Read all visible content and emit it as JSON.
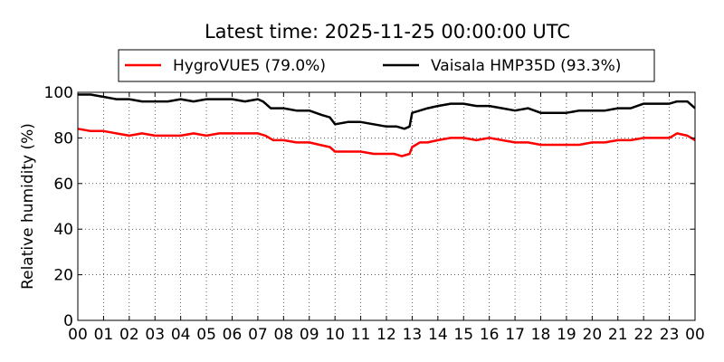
{
  "chart_data": {
    "type": "line",
    "title": "Latest time: 2025-11-25 00:00:00 UTC",
    "xlabel": "",
    "ylabel": "Relative humidity (%)",
    "ylim": [
      0,
      100
    ],
    "xlim": [
      0,
      24
    ],
    "yticks": [
      0,
      20,
      40,
      60,
      80,
      100
    ],
    "xtick_labels": [
      "00",
      "01",
      "02",
      "03",
      "04",
      "05",
      "06",
      "07",
      "08",
      "09",
      "10",
      "11",
      "12",
      "13",
      "14",
      "15",
      "16",
      "17",
      "18",
      "19",
      "20",
      "21",
      "22",
      "23",
      "00"
    ],
    "grid": true,
    "legend_position": "top",
    "series": [
      {
        "name": "HygroVUE5 (79.0%)",
        "color": "#ff0000",
        "x": [
          0,
          0.5,
          1,
          1.5,
          2,
          2.5,
          3,
          3.5,
          4,
          4.5,
          5,
          5.5,
          6,
          6.5,
          7,
          7.3,
          7.6,
          8,
          8.5,
          9,
          9.4,
          9.8,
          10,
          10.5,
          11,
          11.5,
          12,
          12.3,
          12.6,
          12.9,
          13,
          13.3,
          13.6,
          14,
          14.5,
          15,
          15.5,
          16,
          16.5,
          17,
          17.5,
          18,
          18.5,
          19,
          19.5,
          20,
          20.5,
          21,
          21.5,
          22,
          22.5,
          23,
          23.3,
          23.7,
          24
        ],
        "values": [
          84,
          83,
          83,
          82,
          81,
          82,
          81,
          81,
          81,
          82,
          81,
          82,
          82,
          82,
          82,
          81,
          79,
          79,
          78,
          78,
          77,
          76,
          74,
          74,
          74,
          73,
          73,
          73,
          72,
          73,
          76,
          78,
          78,
          79,
          80,
          80,
          79,
          80,
          79,
          78,
          78,
          77,
          77,
          77,
          77,
          78,
          78,
          79,
          79,
          80,
          80,
          80,
          82,
          81,
          79
        ]
      },
      {
        "name": "Vaisala HMP35D (93.3%)",
        "color": "#000000",
        "x": [
          0,
          0.5,
          1,
          1.5,
          2,
          2.5,
          3,
          3.5,
          4,
          4.5,
          5,
          5.5,
          6,
          6.5,
          7,
          7.2,
          7.5,
          8,
          8.5,
          9,
          9.5,
          9.8,
          10,
          10.5,
          11,
          11.5,
          12,
          12.4,
          12.7,
          12.9,
          13,
          13.3,
          13.6,
          14,
          14.5,
          15,
          15.5,
          16,
          16.5,
          17,
          17.5,
          18,
          18.5,
          19,
          19.5,
          20,
          20.5,
          21,
          21.5,
          22,
          22.5,
          23,
          23.3,
          23.7,
          24
        ],
        "values": [
          99,
          99,
          98,
          97,
          97,
          96,
          96,
          96,
          97,
          96,
          97,
          97,
          97,
          96,
          97,
          96,
          93,
          93,
          92,
          92,
          90,
          89,
          86,
          87,
          87,
          86,
          85,
          85,
          84,
          85,
          91,
          92,
          93,
          94,
          95,
          95,
          94,
          94,
          93,
          92,
          93,
          91,
          91,
          91,
          92,
          92,
          92,
          93,
          93,
          95,
          95,
          95,
          96,
          96,
          93
        ]
      }
    ]
  }
}
